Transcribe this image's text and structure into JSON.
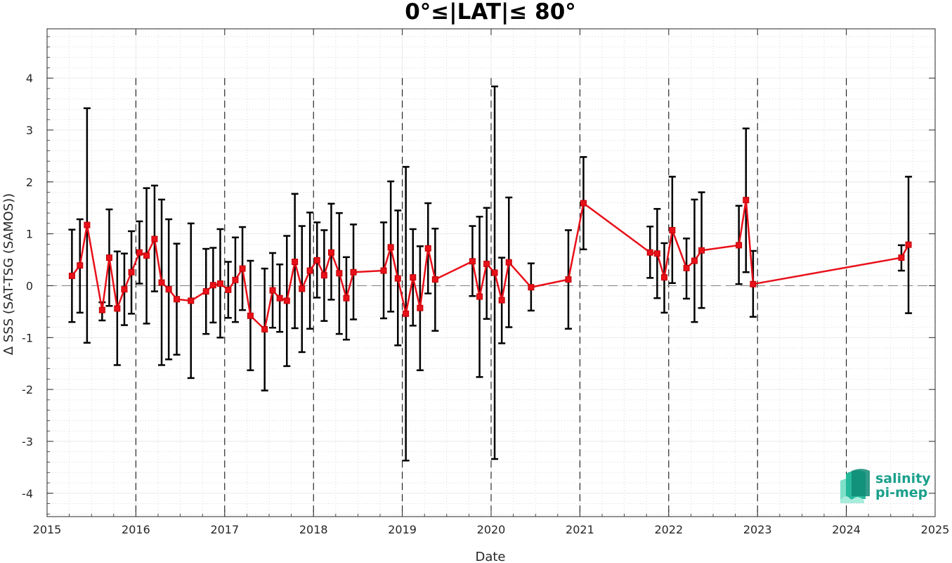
{
  "chart_data": {
    "type": "line",
    "title": "0°≤|LAT|≤ 80°",
    "xlabel": "Date",
    "ylabel": "Δ SSS (SAT-TSG (SAMOS))",
    "xlim": [
      2015.0,
      2025.0
    ],
    "ylim": [
      -4.45,
      4.95
    ],
    "x_ticks": [
      "2015",
      "2016",
      "2017",
      "2018",
      "2019",
      "2020",
      "2021",
      "2022",
      "2023",
      "2024",
      "2025"
    ],
    "y_ticks": [
      "-4",
      "-3",
      "-2",
      "-1",
      "0",
      "1",
      "2",
      "3",
      "4"
    ],
    "grid": "minor dotted",
    "year_boundaries": [
      "2016",
      "2017",
      "2018",
      "2019",
      "2020",
      "2021",
      "2022",
      "2023",
      "2024"
    ],
    "reference_line": 0,
    "colors": {
      "series": "#e8101a",
      "errorbar": "#000000",
      "reference": "#808080"
    },
    "series": [
      {
        "points": [
          {
            "x": 2015.28,
            "y": 0.19,
            "lo": -0.7,
            "hi": 1.08
          },
          {
            "x": 2015.37,
            "y": 0.39,
            "lo": -0.52,
            "hi": 1.28
          },
          {
            "x": 2015.45,
            "y": 1.17,
            "lo": -1.1,
            "hi": 3.42
          },
          {
            "x": 2015.62,
            "y": -0.47,
            "lo": -0.67,
            "hi": -0.32
          },
          {
            "x": 2015.7,
            "y": 0.54,
            "lo": -0.39,
            "hi": 1.47
          },
          {
            "x": 2015.79,
            "y": -0.44,
            "lo": -1.53,
            "hi": 0.66
          },
          {
            "x": 2015.87,
            "y": -0.07,
            "lo": -0.76,
            "hi": 0.62
          },
          {
            "x": 2015.95,
            "y": 0.26,
            "lo": -0.54,
            "hi": 1.05
          },
          {
            "x": 2016.04,
            "y": 0.64,
            "lo": 0.04,
            "hi": 1.24
          },
          {
            "x": 2016.12,
            "y": 0.58,
            "lo": -0.73,
            "hi": 1.88
          },
          {
            "x": 2016.21,
            "y": 0.9,
            "lo": -0.11,
            "hi": 1.93
          },
          {
            "x": 2016.29,
            "y": 0.06,
            "lo": -1.53,
            "hi": 1.66
          },
          {
            "x": 2016.37,
            "y": -0.07,
            "lo": -1.42,
            "hi": 1.28
          },
          {
            "x": 2016.46,
            "y": -0.26,
            "lo": -1.33,
            "hi": 0.81
          },
          {
            "x": 2016.62,
            "y": -0.29,
            "lo": -1.78,
            "hi": 1.2
          },
          {
            "x": 2016.79,
            "y": -0.11,
            "lo": -0.93,
            "hi": 0.71
          },
          {
            "x": 2016.87,
            "y": 0.01,
            "lo": -0.71,
            "hi": 0.73
          },
          {
            "x": 2016.95,
            "y": 0.04,
            "lo": -1.0,
            "hi": 1.09
          },
          {
            "x": 2017.04,
            "y": -0.08,
            "lo": -0.62,
            "hi": 0.46
          },
          {
            "x": 2017.12,
            "y": 0.11,
            "lo": -0.7,
            "hi": 0.93
          },
          {
            "x": 2017.2,
            "y": 0.33,
            "lo": -0.47,
            "hi": 1.13
          },
          {
            "x": 2017.29,
            "y": -0.58,
            "lo": -1.63,
            "hi": 0.48
          },
          {
            "x": 2017.45,
            "y": -0.84,
            "lo": -2.02,
            "hi": 0.33
          },
          {
            "x": 2017.54,
            "y": -0.09,
            "lo": -0.81,
            "hi": 0.63
          },
          {
            "x": 2017.62,
            "y": -0.24,
            "lo": -0.89,
            "hi": 0.41
          },
          {
            "x": 2017.7,
            "y": -0.29,
            "lo": -1.55,
            "hi": 0.96
          },
          {
            "x": 2017.79,
            "y": 0.46,
            "lo": -0.82,
            "hi": 1.77
          },
          {
            "x": 2017.87,
            "y": -0.06,
            "lo": -1.28,
            "hi": 1.15
          },
          {
            "x": 2017.96,
            "y": 0.29,
            "lo": -0.83,
            "hi": 1.41
          },
          {
            "x": 2018.04,
            "y": 0.49,
            "lo": -0.23,
            "hi": 1.22
          },
          {
            "x": 2018.12,
            "y": 0.2,
            "lo": -0.68,
            "hi": 1.07
          },
          {
            "x": 2018.2,
            "y": 0.64,
            "lo": -0.27,
            "hi": 1.58
          },
          {
            "x": 2018.29,
            "y": 0.24,
            "lo": -0.93,
            "hi": 1.4
          },
          {
            "x": 2018.37,
            "y": -0.24,
            "lo": -1.04,
            "hi": 0.55
          },
          {
            "x": 2018.45,
            "y": 0.26,
            "lo": -0.65,
            "hi": 1.18
          },
          {
            "x": 2018.79,
            "y": 0.29,
            "lo": -0.63,
            "hi": 1.22
          },
          {
            "x": 2018.87,
            "y": 0.74,
            "lo": -0.5,
            "hi": 2.01
          },
          {
            "x": 2018.95,
            "y": 0.14,
            "lo": -1.15,
            "hi": 1.45
          },
          {
            "x": 2019.04,
            "y": -0.54,
            "lo": -3.37,
            "hi": 2.29
          },
          {
            "x": 2019.12,
            "y": 0.16,
            "lo": -0.77,
            "hi": 1.09
          },
          {
            "x": 2019.2,
            "y": -0.43,
            "lo": -1.63,
            "hi": 0.76
          },
          {
            "x": 2019.29,
            "y": 0.72,
            "lo": -0.15,
            "hi": 1.59
          },
          {
            "x": 2019.37,
            "y": 0.12,
            "lo": -0.87,
            "hi": 1.1
          },
          {
            "x": 2019.79,
            "y": 0.47,
            "lo": -0.2,
            "hi": 1.15
          },
          {
            "x": 2019.87,
            "y": -0.21,
            "lo": -1.76,
            "hi": 1.33
          },
          {
            "x": 2019.95,
            "y": 0.42,
            "lo": -0.64,
            "hi": 1.5
          },
          {
            "x": 2020.04,
            "y": 0.25,
            "lo": -3.34,
            "hi": 3.84
          },
          {
            "x": 2020.12,
            "y": -0.28,
            "lo": -1.11,
            "hi": 0.54
          },
          {
            "x": 2020.2,
            "y": 0.45,
            "lo": -0.8,
            "hi": 1.7
          },
          {
            "x": 2020.45,
            "y": -0.03,
            "lo": -0.48,
            "hi": 0.43
          },
          {
            "x": 2020.87,
            "y": 0.12,
            "lo": -0.83,
            "hi": 1.07
          },
          {
            "x": 2021.04,
            "y": 1.59,
            "lo": 0.7,
            "hi": 2.48
          },
          {
            "x": 2021.79,
            "y": 0.64,
            "lo": 0.15,
            "hi": 1.14
          },
          {
            "x": 2021.87,
            "y": 0.62,
            "lo": -0.24,
            "hi": 1.48
          },
          {
            "x": 2021.95,
            "y": 0.16,
            "lo": -0.52,
            "hi": 0.82
          },
          {
            "x": 2022.04,
            "y": 1.07,
            "lo": 0.05,
            "hi": 2.1
          },
          {
            "x": 2022.2,
            "y": 0.34,
            "lo": -0.25,
            "hi": 0.91
          },
          {
            "x": 2022.29,
            "y": 0.48,
            "lo": -0.7,
            "hi": 1.66
          },
          {
            "x": 2022.37,
            "y": 0.68,
            "lo": -0.43,
            "hi": 1.8
          },
          {
            "x": 2022.79,
            "y": 0.78,
            "lo": 0.03,
            "hi": 1.54
          },
          {
            "x": 2022.87,
            "y": 1.65,
            "lo": 0.26,
            "hi": 3.03
          },
          {
            "x": 2022.95,
            "y": 0.03,
            "lo": -0.6,
            "hi": 0.67
          },
          {
            "x": 2024.62,
            "y": 0.54,
            "lo": 0.29,
            "hi": 0.78
          },
          {
            "x": 2024.7,
            "y": 0.79,
            "lo": -0.53,
            "hi": 2.1
          }
        ]
      }
    ]
  },
  "logo": {
    "line1": "salinity",
    "line2": "pi-mep",
    "color": "#1aa08c"
  }
}
